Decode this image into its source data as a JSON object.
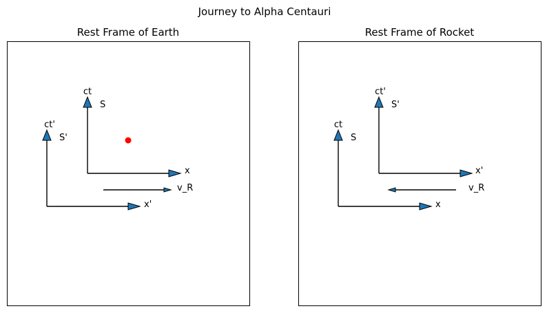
{
  "figure": {
    "title": "Journey to Alpha Centauri"
  },
  "colors": {
    "arrow_fill": "#1f77b4",
    "line": "#000000",
    "event_dot": "#ff0000"
  },
  "panels": [
    {
      "title": "Rest Frame of Earth",
      "frame_a": {
        "name": "S",
        "time_axis": "ct",
        "space_axis": "x"
      },
      "frame_b": {
        "name": "S'",
        "time_axis": "ct'",
        "space_axis": "x'"
      },
      "velocity_label": "v_R",
      "velocity_direction": "right",
      "event_marker": "red-dot"
    },
    {
      "title": "Rest Frame of Rocket",
      "frame_a": {
        "name": "S'",
        "time_axis": "ct'",
        "space_axis": "x'"
      },
      "frame_b": {
        "name": "S",
        "time_axis": "ct",
        "space_axis": "x"
      },
      "velocity_label": "v_R",
      "velocity_direction": "left"
    }
  ]
}
